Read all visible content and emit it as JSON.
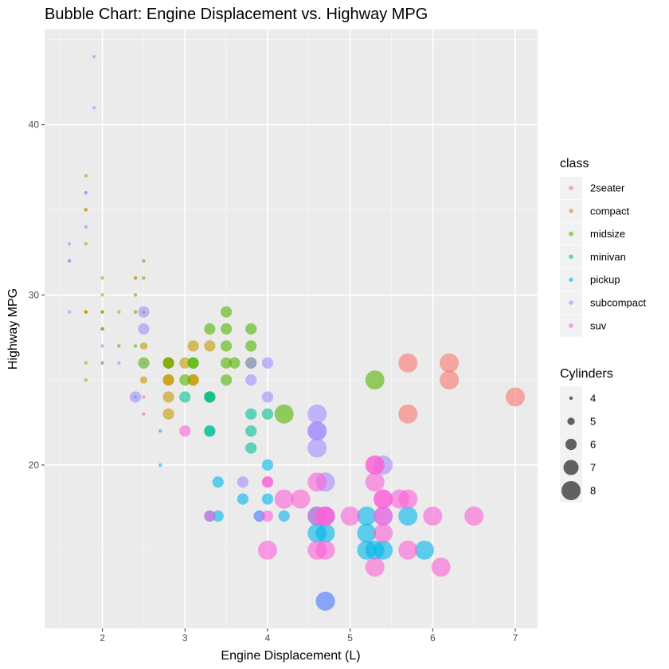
{
  "chart_data": {
    "type": "scatter",
    "title": "Bubble Chart: Engine Displacement vs. Highway MPG",
    "xlabel": "Engine Displacement (L)",
    "ylabel": "Highway MPG",
    "xlim": [
      1.3,
      7.27
    ],
    "ylim": [
      10.4,
      45.6
    ],
    "x_ticks": [
      2,
      3,
      4,
      5,
      6,
      7
    ],
    "y_ticks": [
      20,
      30,
      40
    ],
    "grid": true,
    "point_alpha": 0.6,
    "color_legend": {
      "title": "class",
      "entries": [
        {
          "label": "2seater",
          "color": "#F8766D"
        },
        {
          "label": "compact",
          "color": "#C49A00"
        },
        {
          "label": "midsize",
          "color": "#53B400"
        },
        {
          "label": "minivan",
          "color": "#00C094"
        },
        {
          "label": "pickup",
          "color": "#00B6EB"
        },
        {
          "label": "subcompact",
          "color": "#A58AFF"
        },
        {
          "label": "suv",
          "color": "#FB61D7"
        }
      ]
    },
    "size_legend": {
      "title": "Cylinders",
      "entries": [
        {
          "label": "4",
          "value": 4
        },
        {
          "label": "5",
          "value": 5
        },
        {
          "label": "6",
          "value": 6
        },
        {
          "label": "7",
          "value": 7
        },
        {
          "label": "8",
          "value": 8
        }
      ]
    },
    "series": [
      {
        "name": "2seater",
        "points": [
          {
            "x": 5.7,
            "y": 26,
            "cyl": 8
          },
          {
            "x": 5.7,
            "y": 23,
            "cyl": 8
          },
          {
            "x": 6.2,
            "y": 26,
            "cyl": 8
          },
          {
            "x": 6.2,
            "y": 25,
            "cyl": 8
          },
          {
            "x": 7.0,
            "y": 24,
            "cyl": 8
          }
        ]
      },
      {
        "name": "compact",
        "points": [
          {
            "x": 1.8,
            "y": 29,
            "cyl": 4
          },
          {
            "x": 1.8,
            "y": 29,
            "cyl": 4
          },
          {
            "x": 2.0,
            "y": 31,
            "cyl": 4
          },
          {
            "x": 2.0,
            "y": 30,
            "cyl": 4
          },
          {
            "x": 2.8,
            "y": 26,
            "cyl": 6
          },
          {
            "x": 2.8,
            "y": 26,
            "cyl": 6
          },
          {
            "x": 3.1,
            "y": 27,
            "cyl": 6
          },
          {
            "x": 1.8,
            "y": 26,
            "cyl": 4
          },
          {
            "x": 1.8,
            "y": 25,
            "cyl": 4
          },
          {
            "x": 2.0,
            "y": 28,
            "cyl": 4
          },
          {
            "x": 2.8,
            "y": 25,
            "cyl": 6
          },
          {
            "x": 2.8,
            "y": 25,
            "cyl": 6
          },
          {
            "x": 3.1,
            "y": 25,
            "cyl": 6
          },
          {
            "x": 3.1,
            "y": 25,
            "cyl": 6
          },
          {
            "x": 2.0,
            "y": 29,
            "cyl": 4
          },
          {
            "x": 2.4,
            "y": 31,
            "cyl": 4
          },
          {
            "x": 2.4,
            "y": 31,
            "cyl": 4
          },
          {
            "x": 2.2,
            "y": 29,
            "cyl": 4
          },
          {
            "x": 3.0,
            "y": 26,
            "cyl": 6
          },
          {
            "x": 3.3,
            "y": 27,
            "cyl": 6
          },
          {
            "x": 1.8,
            "y": 35,
            "cyl": 4
          },
          {
            "x": 1.8,
            "y": 37,
            "cyl": 4
          },
          {
            "x": 1.8,
            "y": 35,
            "cyl": 4
          },
          {
            "x": 1.8,
            "y": 33,
            "cyl": 4
          },
          {
            "x": 1.8,
            "y": 29,
            "cyl": 4
          },
          {
            "x": 2.0,
            "y": 26,
            "cyl": 4
          },
          {
            "x": 2.5,
            "y": 27,
            "cyl": 5
          },
          {
            "x": 2.5,
            "y": 25,
            "cyl": 5
          },
          {
            "x": 2.8,
            "y": 24,
            "cyl": 6
          },
          {
            "x": 2.8,
            "y": 23,
            "cyl": 6
          }
        ]
      },
      {
        "name": "midsize",
        "points": [
          {
            "x": 2.4,
            "y": 27,
            "cyl": 4
          },
          {
            "x": 2.4,
            "y": 30,
            "cyl": 4
          },
          {
            "x": 2.5,
            "y": 26,
            "cyl": 6
          },
          {
            "x": 2.5,
            "y": 29,
            "cyl": 4
          },
          {
            "x": 2.5,
            "y": 32,
            "cyl": 4
          },
          {
            "x": 2.0,
            "y": 28,
            "cyl": 4
          },
          {
            "x": 2.5,
            "y": 31,
            "cyl": 4
          },
          {
            "x": 2.8,
            "y": 26,
            "cyl": 6
          },
          {
            "x": 3.1,
            "y": 26,
            "cyl": 6
          },
          {
            "x": 3.3,
            "y": 28,
            "cyl": 6
          },
          {
            "x": 3.5,
            "y": 29,
            "cyl": 6
          },
          {
            "x": 3.5,
            "y": 26,
            "cyl": 6
          },
          {
            "x": 3.6,
            "y": 26,
            "cyl": 6
          },
          {
            "x": 3.8,
            "y": 28,
            "cyl": 6
          },
          {
            "x": 3.8,
            "y": 27,
            "cyl": 6
          },
          {
            "x": 3.5,
            "y": 25,
            "cyl": 6
          },
          {
            "x": 3.0,
            "y": 25,
            "cyl": 6
          },
          {
            "x": 2.4,
            "y": 29,
            "cyl": 4
          },
          {
            "x": 2.2,
            "y": 27,
            "cyl": 4
          },
          {
            "x": 2.0,
            "y": 29,
            "cyl": 4
          },
          {
            "x": 3.5,
            "y": 28,
            "cyl": 6
          },
          {
            "x": 3.5,
            "y": 27,
            "cyl": 6
          },
          {
            "x": 3.8,
            "y": 26,
            "cyl": 6
          },
          {
            "x": 4.2,
            "y": 23,
            "cyl": 8
          },
          {
            "x": 5.3,
            "y": 25,
            "cyl": 8
          },
          {
            "x": 3.1,
            "y": 26,
            "cyl": 6
          },
          {
            "x": 3.3,
            "y": 24,
            "cyl": 6
          }
        ]
      },
      {
        "name": "minivan",
        "points": [
          {
            "x": 2.4,
            "y": 24,
            "cyl": 4
          },
          {
            "x": 3.0,
            "y": 24,
            "cyl": 6
          },
          {
            "x": 3.3,
            "y": 22,
            "cyl": 6
          },
          {
            "x": 3.3,
            "y": 24,
            "cyl": 6
          },
          {
            "x": 3.3,
            "y": 22,
            "cyl": 6
          },
          {
            "x": 3.8,
            "y": 22,
            "cyl": 6
          },
          {
            "x": 3.8,
            "y": 21,
            "cyl": 6
          },
          {
            "x": 3.8,
            "y": 23,
            "cyl": 6
          },
          {
            "x": 4.0,
            "y": 23,
            "cyl": 6
          },
          {
            "x": 3.3,
            "y": 24,
            "cyl": 6
          }
        ]
      },
      {
        "name": "pickup",
        "points": [
          {
            "x": 2.7,
            "y": 20,
            "cyl": 4
          },
          {
            "x": 2.7,
            "y": 22,
            "cyl": 4
          },
          {
            "x": 3.4,
            "y": 17,
            "cyl": 6
          },
          {
            "x": 3.4,
            "y": 19,
            "cyl": 6
          },
          {
            "x": 3.7,
            "y": 18,
            "cyl": 6
          },
          {
            "x": 3.9,
            "y": 17,
            "cyl": 6
          },
          {
            "x": 4.0,
            "y": 18,
            "cyl": 6
          },
          {
            "x": 4.0,
            "y": 20,
            "cyl": 6
          },
          {
            "x": 4.2,
            "y": 17,
            "cyl": 6
          },
          {
            "x": 4.6,
            "y": 17,
            "cyl": 8
          },
          {
            "x": 4.6,
            "y": 16,
            "cyl": 8
          },
          {
            "x": 4.7,
            "y": 16,
            "cyl": 8
          },
          {
            "x": 4.7,
            "y": 12,
            "cyl": 8
          },
          {
            "x": 5.2,
            "y": 15,
            "cyl": 8
          },
          {
            "x": 5.2,
            "y": 16,
            "cyl": 8
          },
          {
            "x": 5.2,
            "y": 17,
            "cyl": 8
          },
          {
            "x": 5.3,
            "y": 15,
            "cyl": 8
          },
          {
            "x": 5.4,
            "y": 15,
            "cyl": 8
          },
          {
            "x": 5.7,
            "y": 17,
            "cyl": 8
          },
          {
            "x": 5.9,
            "y": 15,
            "cyl": 8
          },
          {
            "x": 3.3,
            "y": 17,
            "cyl": 6
          }
        ]
      },
      {
        "name": "subcompact",
        "points": [
          {
            "x": 1.6,
            "y": 33,
            "cyl": 4
          },
          {
            "x": 1.6,
            "y": 32,
            "cyl": 4
          },
          {
            "x": 1.6,
            "y": 32,
            "cyl": 4
          },
          {
            "x": 1.6,
            "y": 29,
            "cyl": 4
          },
          {
            "x": 1.8,
            "y": 34,
            "cyl": 4
          },
          {
            "x": 1.8,
            "y": 36,
            "cyl": 4
          },
          {
            "x": 1.8,
            "y": 36,
            "cyl": 4
          },
          {
            "x": 1.9,
            "y": 44,
            "cyl": 4
          },
          {
            "x": 1.9,
            "y": 41,
            "cyl": 4
          },
          {
            "x": 2.0,
            "y": 27,
            "cyl": 4
          },
          {
            "x": 2.0,
            "y": 26,
            "cyl": 4
          },
          {
            "x": 2.2,
            "y": 26,
            "cyl": 4
          },
          {
            "x": 2.5,
            "y": 29,
            "cyl": 6
          },
          {
            "x": 2.5,
            "y": 28,
            "cyl": 6
          },
          {
            "x": 2.5,
            "y": 26,
            "cyl": 4
          },
          {
            "x": 2.4,
            "y": 24,
            "cyl": 6
          },
          {
            "x": 3.8,
            "y": 26,
            "cyl": 6
          },
          {
            "x": 3.8,
            "y": 25,
            "cyl": 6
          },
          {
            "x": 4.0,
            "y": 26,
            "cyl": 6
          },
          {
            "x": 4.0,
            "y": 24,
            "cyl": 6
          },
          {
            "x": 4.6,
            "y": 21,
            "cyl": 8
          },
          {
            "x": 4.6,
            "y": 22,
            "cyl": 8
          },
          {
            "x": 4.6,
            "y": 23,
            "cyl": 8
          },
          {
            "x": 4.6,
            "y": 22,
            "cyl": 8
          },
          {
            "x": 5.4,
            "y": 20,
            "cyl": 8
          },
          {
            "x": 3.7,
            "y": 19,
            "cyl": 6
          },
          {
            "x": 3.9,
            "y": 17,
            "cyl": 6
          },
          {
            "x": 4.7,
            "y": 19,
            "cyl": 8
          },
          {
            "x": 4.7,
            "y": 17,
            "cyl": 8
          },
          {
            "x": 4.7,
            "y": 12,
            "cyl": 8
          },
          {
            "x": 5.4,
            "y": 17,
            "cyl": 8
          }
        ]
      },
      {
        "name": "suv",
        "points": [
          {
            "x": 2.5,
            "y": 23,
            "cyl": 4
          },
          {
            "x": 2.5,
            "y": 24,
            "cyl": 4
          },
          {
            "x": 3.0,
            "y": 22,
            "cyl": 6
          },
          {
            "x": 3.3,
            "y": 17,
            "cyl": 6
          },
          {
            "x": 4.0,
            "y": 19,
            "cyl": 6
          },
          {
            "x": 4.0,
            "y": 17,
            "cyl": 6
          },
          {
            "x": 4.0,
            "y": 15,
            "cyl": 8
          },
          {
            "x": 4.2,
            "y": 18,
            "cyl": 8
          },
          {
            "x": 4.4,
            "y": 18,
            "cyl": 8
          },
          {
            "x": 4.6,
            "y": 19,
            "cyl": 8
          },
          {
            "x": 4.6,
            "y": 17,
            "cyl": 8
          },
          {
            "x": 4.6,
            "y": 15,
            "cyl": 8
          },
          {
            "x": 4.7,
            "y": 17,
            "cyl": 8
          },
          {
            "x": 4.7,
            "y": 15,
            "cyl": 8
          },
          {
            "x": 5.0,
            "y": 17,
            "cyl": 8
          },
          {
            "x": 5.3,
            "y": 20,
            "cyl": 8
          },
          {
            "x": 5.3,
            "y": 19,
            "cyl": 8
          },
          {
            "x": 5.3,
            "y": 14,
            "cyl": 8
          },
          {
            "x": 5.4,
            "y": 18,
            "cyl": 8
          },
          {
            "x": 5.4,
            "y": 17,
            "cyl": 8
          },
          {
            "x": 5.4,
            "y": 16,
            "cyl": 8
          },
          {
            "x": 5.6,
            "y": 18,
            "cyl": 8
          },
          {
            "x": 5.7,
            "y": 18,
            "cyl": 8
          },
          {
            "x": 5.7,
            "y": 15,
            "cyl": 8
          },
          {
            "x": 6.0,
            "y": 17,
            "cyl": 8
          },
          {
            "x": 6.1,
            "y": 14,
            "cyl": 8
          },
          {
            "x": 6.5,
            "y": 17,
            "cyl": 8
          },
          {
            "x": 4.7,
            "y": 17,
            "cyl": 8
          },
          {
            "x": 5.3,
            "y": 20,
            "cyl": 8
          },
          {
            "x": 4.0,
            "y": 19,
            "cyl": 6
          },
          {
            "x": 5.4,
            "y": 18,
            "cyl": 8
          }
        ]
      }
    ]
  }
}
